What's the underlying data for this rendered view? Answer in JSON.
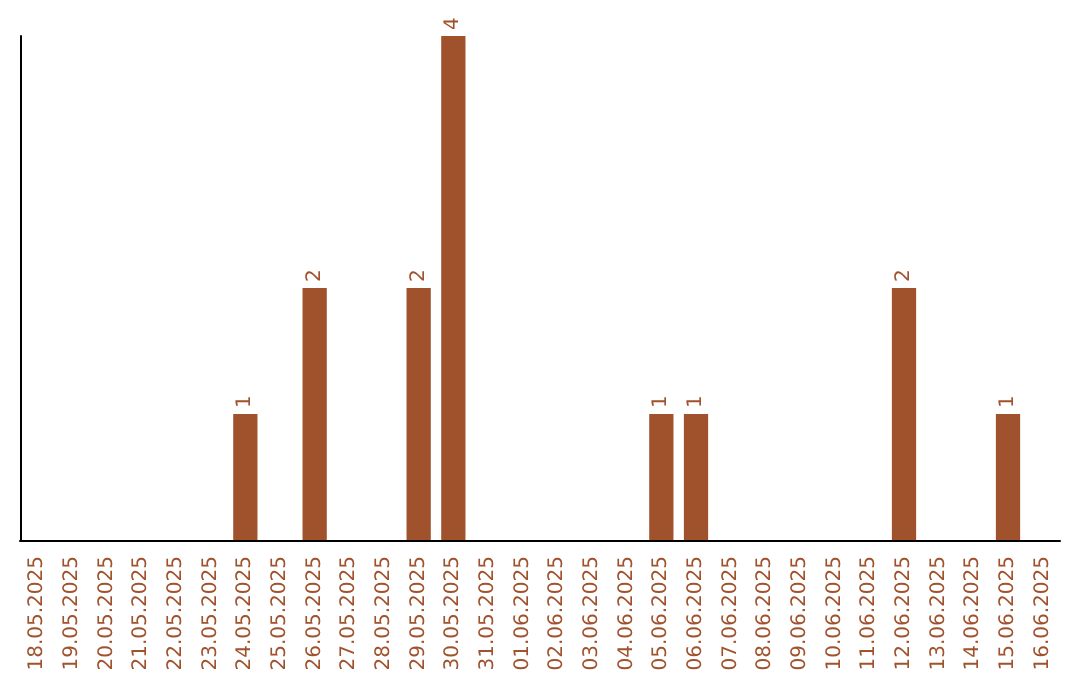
{
  "chart_data": {
    "type": "bar",
    "categories": [
      "18.05.2025",
      "19.05.2025",
      "20.05.2025",
      "21.05.2025",
      "22.05.2025",
      "23.05.2025",
      "24.05.2025",
      "25.05.2025",
      "26.05.2025",
      "27.05.2025",
      "28.05.2025",
      "29.05.2025",
      "30.05.2025",
      "31.05.2025",
      "01.06.2025",
      "02.06.2025",
      "03.06.2025",
      "04.06.2025",
      "05.06.2025",
      "06.06.2025",
      "07.06.2025",
      "08.06.2025",
      "09.06.2025",
      "10.06.2025",
      "11.06.2025",
      "12.06.2025",
      "13.06.2025",
      "14.06.2025",
      "15.06.2025",
      "16.06.2025"
    ],
    "values": [
      0,
      0,
      0,
      0,
      0,
      0,
      1,
      0,
      2,
      0,
      0,
      2,
      4,
      0,
      0,
      0,
      0,
      0,
      1,
      1,
      0,
      0,
      0,
      0,
      0,
      2,
      0,
      0,
      1,
      0
    ],
    "value_labels": [
      null,
      null,
      null,
      null,
      null,
      null,
      "1",
      null,
      "2",
      null,
      null,
      "2",
      "4",
      null,
      null,
      null,
      null,
      null,
      "1",
      "1",
      null,
      null,
      null,
      null,
      null,
      "2",
      null,
      null,
      "1",
      null
    ],
    "color": "#a0522d",
    "grid": false,
    "tick_labels": "x"
  }
}
